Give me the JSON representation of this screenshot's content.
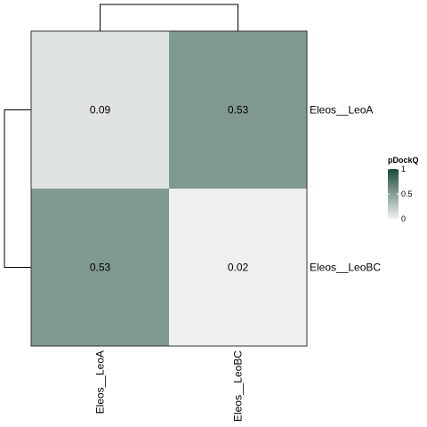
{
  "chart_data": {
    "type": "heatmap",
    "rows": [
      "Eleos__LeoA",
      "Eleos__LeoBC"
    ],
    "columns": [
      "Eleos__LeoA",
      "Eleos__LeoBC"
    ],
    "values": [
      [
        0.09,
        0.53
      ],
      [
        0.53,
        0.02
      ]
    ],
    "cell_labels": [
      [
        "0.09",
        "0.53"
      ],
      [
        "0.53",
        "0.02"
      ]
    ],
    "legend": {
      "title": "pDockQ",
      "range": [
        0,
        1
      ],
      "ticks": [
        {
          "value": 1,
          "label": "1"
        },
        {
          "value": 0.5,
          "label": "0.5"
        },
        {
          "value": 0,
          "label": "0"
        }
      ],
      "position": "right",
      "colors": {
        "low": "#f2f2f2",
        "high": "#1b4a3c"
      }
    },
    "row_dendrogram": true,
    "column_dendrogram": true
  }
}
